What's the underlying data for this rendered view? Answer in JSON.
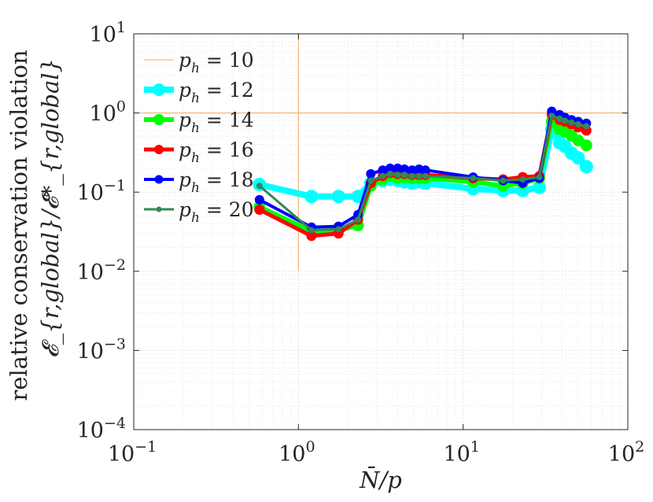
{
  "chart_data": {
    "type": "line",
    "xscale": "log",
    "yscale": "log",
    "xlim": [
      0.1,
      100
    ],
    "ylim": [
      0.0001,
      10
    ],
    "grid": true,
    "legend_position": "top-left",
    "xlabel": "N̄/p",
    "ylabel_line1": "relative conservation violation",
    "ylabel_line2": "𝓔_{r,global}/𝓔*_{r,global}",
    "x_ticks": [
      {
        "base": "10",
        "exp": "−1",
        "value": 0.1
      },
      {
        "base": "10",
        "exp": "0",
        "value": 1
      },
      {
        "base": "10",
        "exp": "1",
        "value": 10
      },
      {
        "base": "10",
        "exp": "2",
        "value": 100
      }
    ],
    "y_ticks": [
      {
        "base": "10",
        "exp": "−4",
        "value": 0.0001
      },
      {
        "base": "10",
        "exp": "−3",
        "value": 0.001
      },
      {
        "base": "10",
        "exp": "−2",
        "value": 0.01
      },
      {
        "base": "10",
        "exp": "−1",
        "value": 0.1
      },
      {
        "base": "10",
        "exp": "0",
        "value": 1
      },
      {
        "base": "10",
        "exp": "1",
        "value": 10
      }
    ],
    "reference_lines": {
      "x": 1,
      "y": 1,
      "x_from_y": 0.01,
      "color": "#f4a460"
    },
    "series": [
      {
        "name": "p_h = 10",
        "label_var": "p",
        "label_sub": "h",
        "label_val": " = 10",
        "color": "#f4a460",
        "line_width": 1,
        "marker_size": 0,
        "x": [],
        "y": []
      },
      {
        "name": "p_h = 12",
        "label_var": "p",
        "label_sub": "h",
        "label_val": " = 12",
        "color": "#00ffff",
        "line_width": 8,
        "marker_size": 8,
        "x": [
          0.58,
          1.2,
          1.75,
          2.3,
          2.75,
          3.25,
          3.6,
          4.0,
          4.4,
          4.9,
          5.4,
          5.9,
          11.5,
          17.5,
          23.0,
          29.0,
          34.5,
          38.5,
          41.5,
          45.5,
          50.0,
          56.0
        ],
        "y": [
          0.125,
          0.088,
          0.088,
          0.088,
          0.13,
          0.14,
          0.145,
          0.14,
          0.135,
          0.13,
          0.135,
          0.13,
          0.11,
          0.105,
          0.105,
          0.115,
          0.62,
          0.42,
          0.38,
          0.31,
          0.27,
          0.21
        ]
      },
      {
        "name": "p_h = 14",
        "label_var": "p",
        "label_sub": "h",
        "label_val": " = 14",
        "color": "#00ff00",
        "line_width": 6,
        "marker_size": 7,
        "x": [
          0.58,
          1.2,
          1.75,
          2.3,
          2.75,
          3.25,
          3.6,
          4.0,
          4.4,
          4.9,
          5.4,
          5.9,
          11.5,
          17.5,
          23.0,
          29.0,
          34.5,
          38.5,
          41.5,
          45.5,
          50.0,
          56.0
        ],
        "y": [
          0.065,
          0.032,
          0.033,
          0.038,
          0.12,
          0.145,
          0.16,
          0.15,
          0.155,
          0.15,
          0.15,
          0.15,
          0.135,
          0.12,
          0.13,
          0.15,
          0.78,
          0.62,
          0.58,
          0.52,
          0.45,
          0.39
        ]
      },
      {
        "name": "p_h = 16",
        "label_var": "p",
        "label_sub": "h",
        "label_val": " = 16",
        "color": "#ff0000",
        "line_width": 5,
        "marker_size": 6,
        "x": [
          0.58,
          1.2,
          1.75,
          2.3,
          2.75,
          3.25,
          3.6,
          4.0,
          4.4,
          4.9,
          5.4,
          5.9,
          11.5,
          17.5,
          23.0,
          29.0,
          34.5,
          38.5,
          41.5,
          45.5,
          50.0,
          56.0
        ],
        "y": [
          0.06,
          0.028,
          0.03,
          0.045,
          0.13,
          0.16,
          0.175,
          0.17,
          0.17,
          0.165,
          0.165,
          0.165,
          0.15,
          0.145,
          0.155,
          0.16,
          0.95,
          0.82,
          0.78,
          0.72,
          0.66,
          0.6
        ]
      },
      {
        "name": "p_h = 18",
        "label_var": "p",
        "label_sub": "h",
        "label_val": " = 18",
        "color": "#0000ff",
        "line_width": 4,
        "marker_size": 5.5,
        "x": [
          0.58,
          1.2,
          1.75,
          2.3,
          2.75,
          3.25,
          3.6,
          4.0,
          4.4,
          4.9,
          5.4,
          5.9,
          11.5,
          17.5,
          23.0,
          29.0,
          34.5,
          38.5,
          41.5,
          45.5,
          50.0,
          56.0
        ],
        "y": [
          0.08,
          0.036,
          0.037,
          0.052,
          0.17,
          0.19,
          0.2,
          0.2,
          0.195,
          0.19,
          0.195,
          0.19,
          0.155,
          0.14,
          0.13,
          0.15,
          1.05,
          0.95,
          0.88,
          0.82,
          0.78,
          0.74
        ]
      },
      {
        "name": "p_h = 20",
        "label_var": "p",
        "label_sub": "h",
        "label_val": " = 20",
        "color": "#2e8b57",
        "line_width": 3,
        "marker_size": 3.5,
        "x": [
          0.58,
          1.2,
          1.75,
          2.3,
          2.75,
          3.25,
          3.6,
          4.0,
          4.4,
          4.9,
          5.4,
          5.9,
          11.5,
          17.5,
          23.0,
          29.0,
          34.5,
          38.5,
          41.5,
          45.5,
          50.0,
          56.0
        ],
        "y": [
          0.12,
          0.033,
          0.034,
          0.045,
          0.14,
          0.16,
          0.17,
          0.165,
          0.165,
          0.16,
          0.16,
          0.16,
          0.15,
          0.14,
          0.145,
          0.155,
          0.92,
          0.85,
          0.8,
          0.76,
          0.72,
          0.68
        ]
      }
    ]
  }
}
